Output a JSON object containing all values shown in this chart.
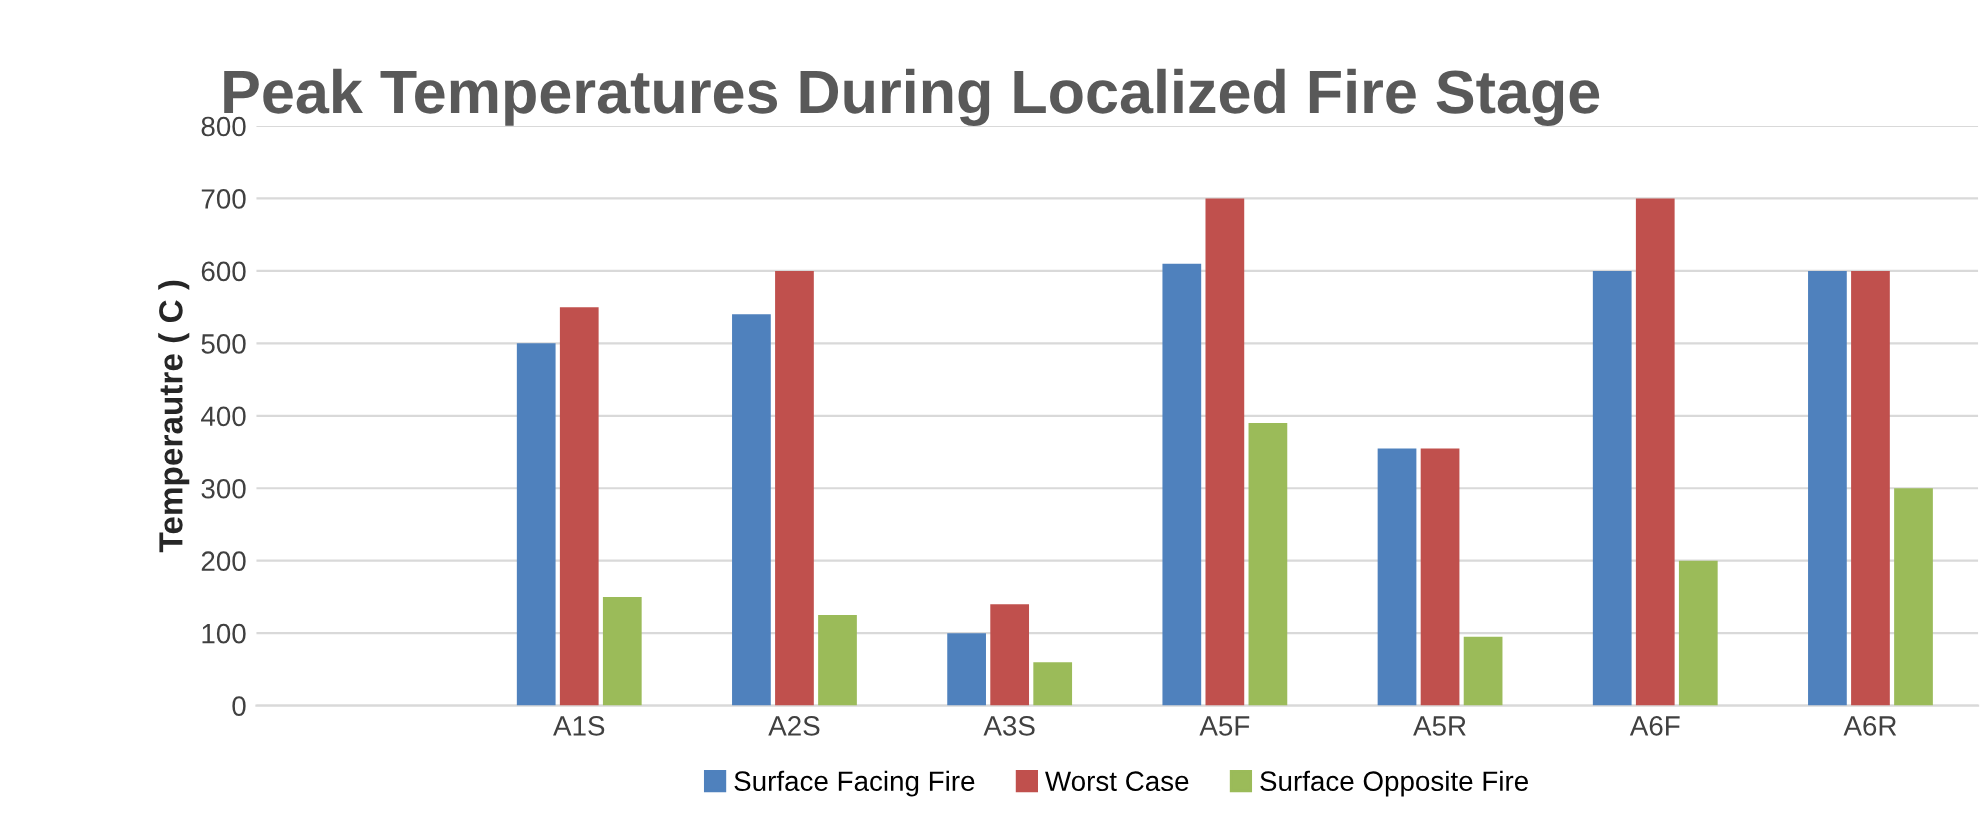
{
  "chart_data": {
    "type": "bar",
    "title": "Peak Temperatures During Localized Fire Stage",
    "ylabel": "Temperautre ( C )",
    "categories": [
      null,
      "A1S",
      "A2S",
      "A3S",
      "A5F",
      "A5R",
      "A6F",
      "A6R"
    ],
    "series": [
      {
        "name": "Surface Facing Fire",
        "color": "#4f81bd",
        "values": [
          null,
          500,
          540,
          100,
          610,
          355,
          600,
          600
        ]
      },
      {
        "name": "Worst Case",
        "color": "#c0504d",
        "values": [
          null,
          550,
          600,
          140,
          700,
          355,
          700,
          600
        ]
      },
      {
        "name": "Surface Opposite Fire",
        "color": "#9bbb59",
        "values": [
          null,
          150,
          125,
          60,
          390,
          95,
          200,
          300
        ]
      }
    ],
    "ylim": [
      0,
      800
    ],
    "yticks": [
      0,
      100,
      200,
      300,
      400,
      500,
      600,
      700,
      800
    ],
    "grid": "y",
    "legend": "bottom"
  }
}
